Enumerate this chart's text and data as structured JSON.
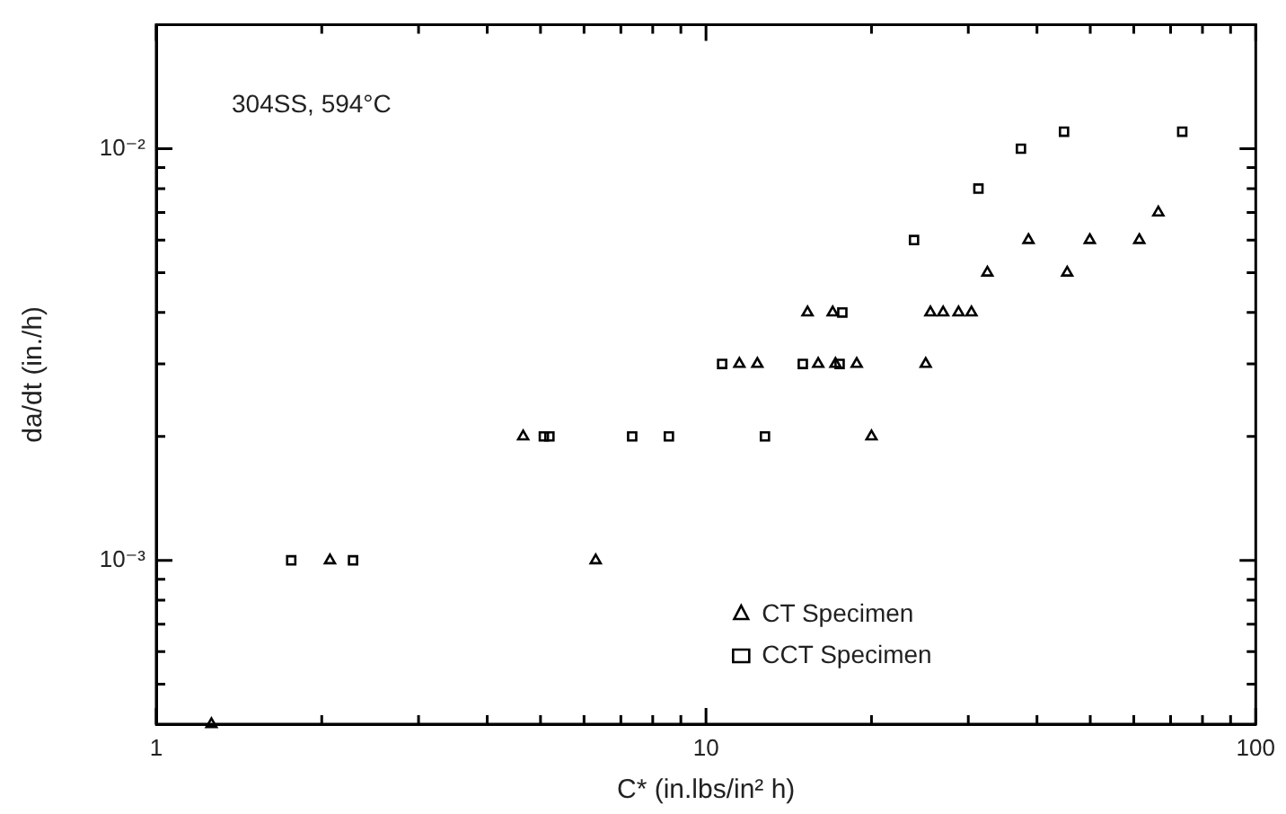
{
  "chart_data": {
    "type": "scatter",
    "xlabel": "C* (in.lbs/in² h)",
    "ylabel": "da/dt (in./h)",
    "log": "xy",
    "grid": false,
    "legend": "bottom right",
    "annotations": [
      "304SS, 594°C"
    ],
    "xlim": [
      1,
      100
    ],
    "ylim": [
      0.0004,
      0.02
    ],
    "xticks": [
      1,
      {
        "value": 2,
        "label": null
      },
      {
        "value": 3,
        "label": null
      },
      {
        "value": 4,
        "label": null
      },
      {
        "value": 5,
        "label": null
      },
      {
        "value": 6,
        "label": null
      },
      {
        "value": 7,
        "label": null
      },
      {
        "value": 8,
        "label": null
      },
      {
        "value": 9,
        "label": null
      },
      10,
      {
        "value": 20,
        "label": null
      },
      {
        "value": 30,
        "label": null
      },
      {
        "value": 40,
        "label": null
      },
      {
        "value": 50,
        "label": null
      },
      {
        "value": 60,
        "label": null
      },
      {
        "value": 70,
        "label": null
      },
      {
        "value": 80,
        "label": null
      },
      {
        "value": 90,
        "label": null
      },
      100
    ],
    "yticks": [
      {
        "value": 0.0005,
        "label": null
      },
      {
        "value": 0.0006,
        "label": null
      },
      {
        "value": 0.0007,
        "label": null
      },
      {
        "value": 0.0008,
        "label": null
      },
      {
        "value": 0.0009,
        "label": null
      },
      {
        "value": 0.001,
        "label": "10⁻³"
      },
      {
        "value": 0.002,
        "label": null
      },
      {
        "value": 0.003,
        "label": null
      },
      {
        "value": 0.004,
        "label": null
      },
      {
        "value": 0.005,
        "label": null
      },
      {
        "value": 0.006,
        "label": null
      },
      {
        "value": 0.007,
        "label": null
      },
      {
        "value": 0.008,
        "label": null
      },
      {
        "value": 0.009,
        "label": null
      },
      {
        "value": 0.01,
        "label": "10⁻²"
      },
      {
        "value": 0.02,
        "label": null
      }
    ],
    "series": [
      {
        "name": "CT Specimen",
        "color": "#000000",
        "marker": "triangle",
        "x": [
          1.26,
          2.07,
          6.3,
          4.65,
          20.0,
          11.5,
          12.4,
          16.0,
          17.2,
          18.8,
          25.1,
          15.3,
          17.0,
          25.6,
          27.0,
          28.8,
          30.4,
          32.5,
          45.4,
          38.6,
          49.9,
          61.4,
          66.5
        ],
        "values": [
          0.0004,
          0.001,
          0.001,
          0.002,
          0.002,
          0.003,
          0.003,
          0.003,
          0.003,
          0.003,
          0.003,
          0.004,
          0.004,
          0.004,
          0.004,
          0.004,
          0.004,
          0.005,
          0.005,
          0.006,
          0.006,
          0.006,
          0.007
        ]
      },
      {
        "name": "CCT Specimen",
        "color": "#000000",
        "marker": "square",
        "x": [
          1.76,
          2.28,
          5.07,
          5.19,
          7.34,
          8.56,
          12.8,
          10.7,
          15.0,
          17.5,
          17.7,
          23.9,
          31.3,
          37.4,
          44.8,
          73.5
        ],
        "values": [
          0.001,
          0.001,
          0.002,
          0.002,
          0.002,
          0.002,
          0.002,
          0.003,
          0.003,
          0.003,
          0.004,
          0.006,
          0.008,
          0.01,
          0.011,
          0.011
        ]
      }
    ]
  }
}
